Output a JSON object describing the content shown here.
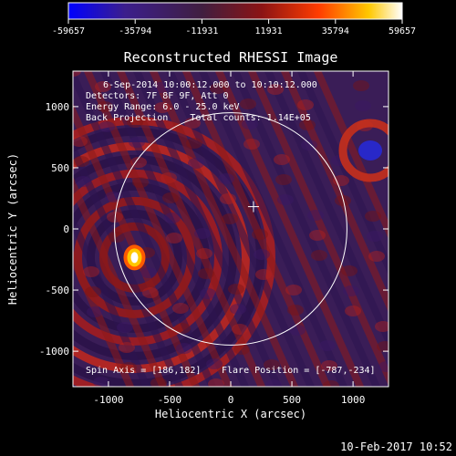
{
  "chart_data": {
    "type": "heatmap",
    "title": "Reconstructed RHESSI Image",
    "xlabel": "Heliocentric X (arcsec)",
    "ylabel": "Heliocentric Y (arcsec)",
    "xlim": [
      -1290,
      1290
    ],
    "ylim": [
      -1290,
      1290
    ],
    "x_ticks": [
      -1000,
      -500,
      0,
      500,
      1000
    ],
    "y_ticks": [
      -1000,
      -500,
      0,
      500,
      1000
    ],
    "colorbar": {
      "min": -59657,
      "max": 59657,
      "tick_labels": [
        "-59657",
        "-35794",
        "-11931",
        "11931",
        "35794",
        "59657"
      ],
      "colors": [
        "#0000ff",
        "#3c1e8c",
        "#401e40",
        "#8c1414",
        "#ff3c00",
        "#ffc800",
        "#ffffff"
      ]
    },
    "annotations": [
      "6-Sep-2014 10:00:12.000 to 10:10:12.000",
      "Detectors: 7F 8F 9F, Att 0",
      "Energy Range: 6.0 - 25.0 keV",
      "Back Projection    Total counts: 1.14E+05"
    ],
    "spin_axis_label": "Spin Axis = [186,182]",
    "flare_position_label": "Flare Position = [-787,-234]",
    "spin_axis": [
      186,
      182
    ],
    "flare_position": [
      -787,
      -234
    ],
    "solar_limb_radius": 950,
    "grid": false
  },
  "footer": {
    "timestamp": "10-Feb-2017 10:52"
  }
}
